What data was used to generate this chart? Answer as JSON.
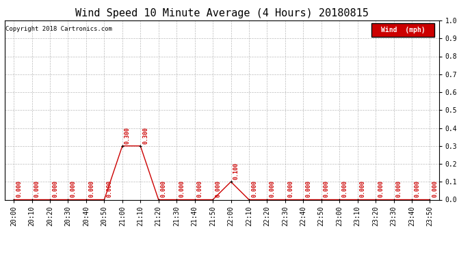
{
  "title": "Wind Speed 10 Minute Average (4 Hours) 20180815",
  "copyright_text": "Copyright 2018 Cartronics.com",
  "legend_label": "Wind  (mph)",
  "legend_bg": "#cc0000",
  "legend_text_color": "#ffffff",
  "x_labels": [
    "20:00",
    "20:10",
    "20:20",
    "20:30",
    "20:40",
    "20:50",
    "21:00",
    "21:10",
    "21:20",
    "21:30",
    "21:40",
    "21:50",
    "22:00",
    "22:10",
    "22:20",
    "22:30",
    "22:40",
    "22:50",
    "23:00",
    "23:10",
    "23:20",
    "23:30",
    "23:40",
    "23:50"
  ],
  "y_values": [
    0.0,
    0.0,
    0.0,
    0.0,
    0.0,
    0.0,
    0.3,
    0.3,
    0.0,
    0.0,
    0.0,
    0.0,
    0.1,
    0.0,
    0.0,
    0.0,
    0.0,
    0.0,
    0.0,
    0.0,
    0.0,
    0.0,
    0.0,
    0.0
  ],
  "line_color": "#cc0000",
  "marker_color": "#000000",
  "annotation_color": "#cc0000",
  "ylim": [
    0.0,
    1.0
  ],
  "yticks": [
    0.0,
    0.1,
    0.2,
    0.3,
    0.4,
    0.5,
    0.6,
    0.7,
    0.8,
    0.9,
    1.0
  ],
  "background_color": "#ffffff",
  "grid_color": "#aaaaaa",
  "title_fontsize": 11,
  "axis_fontsize": 7,
  "annotation_fontsize": 6,
  "copyright_fontsize": 6.5
}
